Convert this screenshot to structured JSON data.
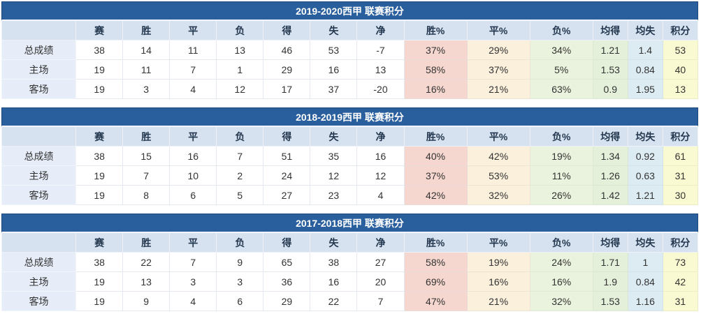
{
  "colors": {
    "title-bg": "#2a5f9e",
    "title-border": "#1c4a80",
    "title-text": "#ffffff",
    "header-bg": "#d6e2f0",
    "header-text": "#24384f",
    "label-bg": "#e7edf8",
    "win-bg": "#f5d7cf",
    "draw-bg": "#faf0dc",
    "loss-bg": "#eaf3dd",
    "avgfor-bg": "#e4f0da",
    "avgagainst-bg": "#dcecf2",
    "points-bg": "#fafad2"
  },
  "columns": [
    "赛",
    "胜",
    "平",
    "负",
    "得",
    "失",
    "净",
    "胜%",
    "平%",
    "负%",
    "均得",
    "均失",
    "积分"
  ],
  "tables": [
    {
      "title": "2019-2020西甲 联赛积分",
      "rows": [
        {
          "label": "总成绩",
          "values": [
            "38",
            "14",
            "11",
            "13",
            "46",
            "53",
            "-7",
            "37%",
            "29%",
            "34%",
            "1.21",
            "1.4",
            "53"
          ]
        },
        {
          "label": "主场",
          "values": [
            "19",
            "11",
            "7",
            "1",
            "29",
            "16",
            "13",
            "58%",
            "37%",
            "5%",
            "1.53",
            "0.84",
            "40"
          ]
        },
        {
          "label": "客场",
          "values": [
            "19",
            "3",
            "4",
            "12",
            "17",
            "37",
            "-20",
            "16%",
            "21%",
            "63%",
            "0.9",
            "1.95",
            "13"
          ]
        }
      ]
    },
    {
      "title": "2018-2019西甲 联赛积分",
      "rows": [
        {
          "label": "总成绩",
          "values": [
            "38",
            "15",
            "16",
            "7",
            "51",
            "35",
            "16",
            "40%",
            "42%",
            "19%",
            "1.34",
            "0.92",
            "61"
          ]
        },
        {
          "label": "主场",
          "values": [
            "19",
            "7",
            "10",
            "2",
            "24",
            "12",
            "12",
            "37%",
            "53%",
            "11%",
            "1.26",
            "0.63",
            "31"
          ]
        },
        {
          "label": "客场",
          "values": [
            "19",
            "8",
            "6",
            "5",
            "27",
            "23",
            "4",
            "42%",
            "32%",
            "26%",
            "1.42",
            "1.21",
            "30"
          ]
        }
      ]
    },
    {
      "title": "2017-2018西甲 联赛积分",
      "rows": [
        {
          "label": "总成绩",
          "values": [
            "38",
            "22",
            "7",
            "9",
            "65",
            "38",
            "27",
            "58%",
            "19%",
            "24%",
            "1.71",
            "1",
            "73"
          ]
        },
        {
          "label": "主场",
          "values": [
            "19",
            "13",
            "3",
            "3",
            "36",
            "16",
            "20",
            "69%",
            "16%",
            "16%",
            "1.9",
            "0.84",
            "42"
          ]
        },
        {
          "label": "客场",
          "values": [
            "19",
            "9",
            "4",
            "6",
            "29",
            "22",
            "7",
            "47%",
            "21%",
            "32%",
            "1.53",
            "1.16",
            "31"
          ]
        }
      ]
    }
  ]
}
